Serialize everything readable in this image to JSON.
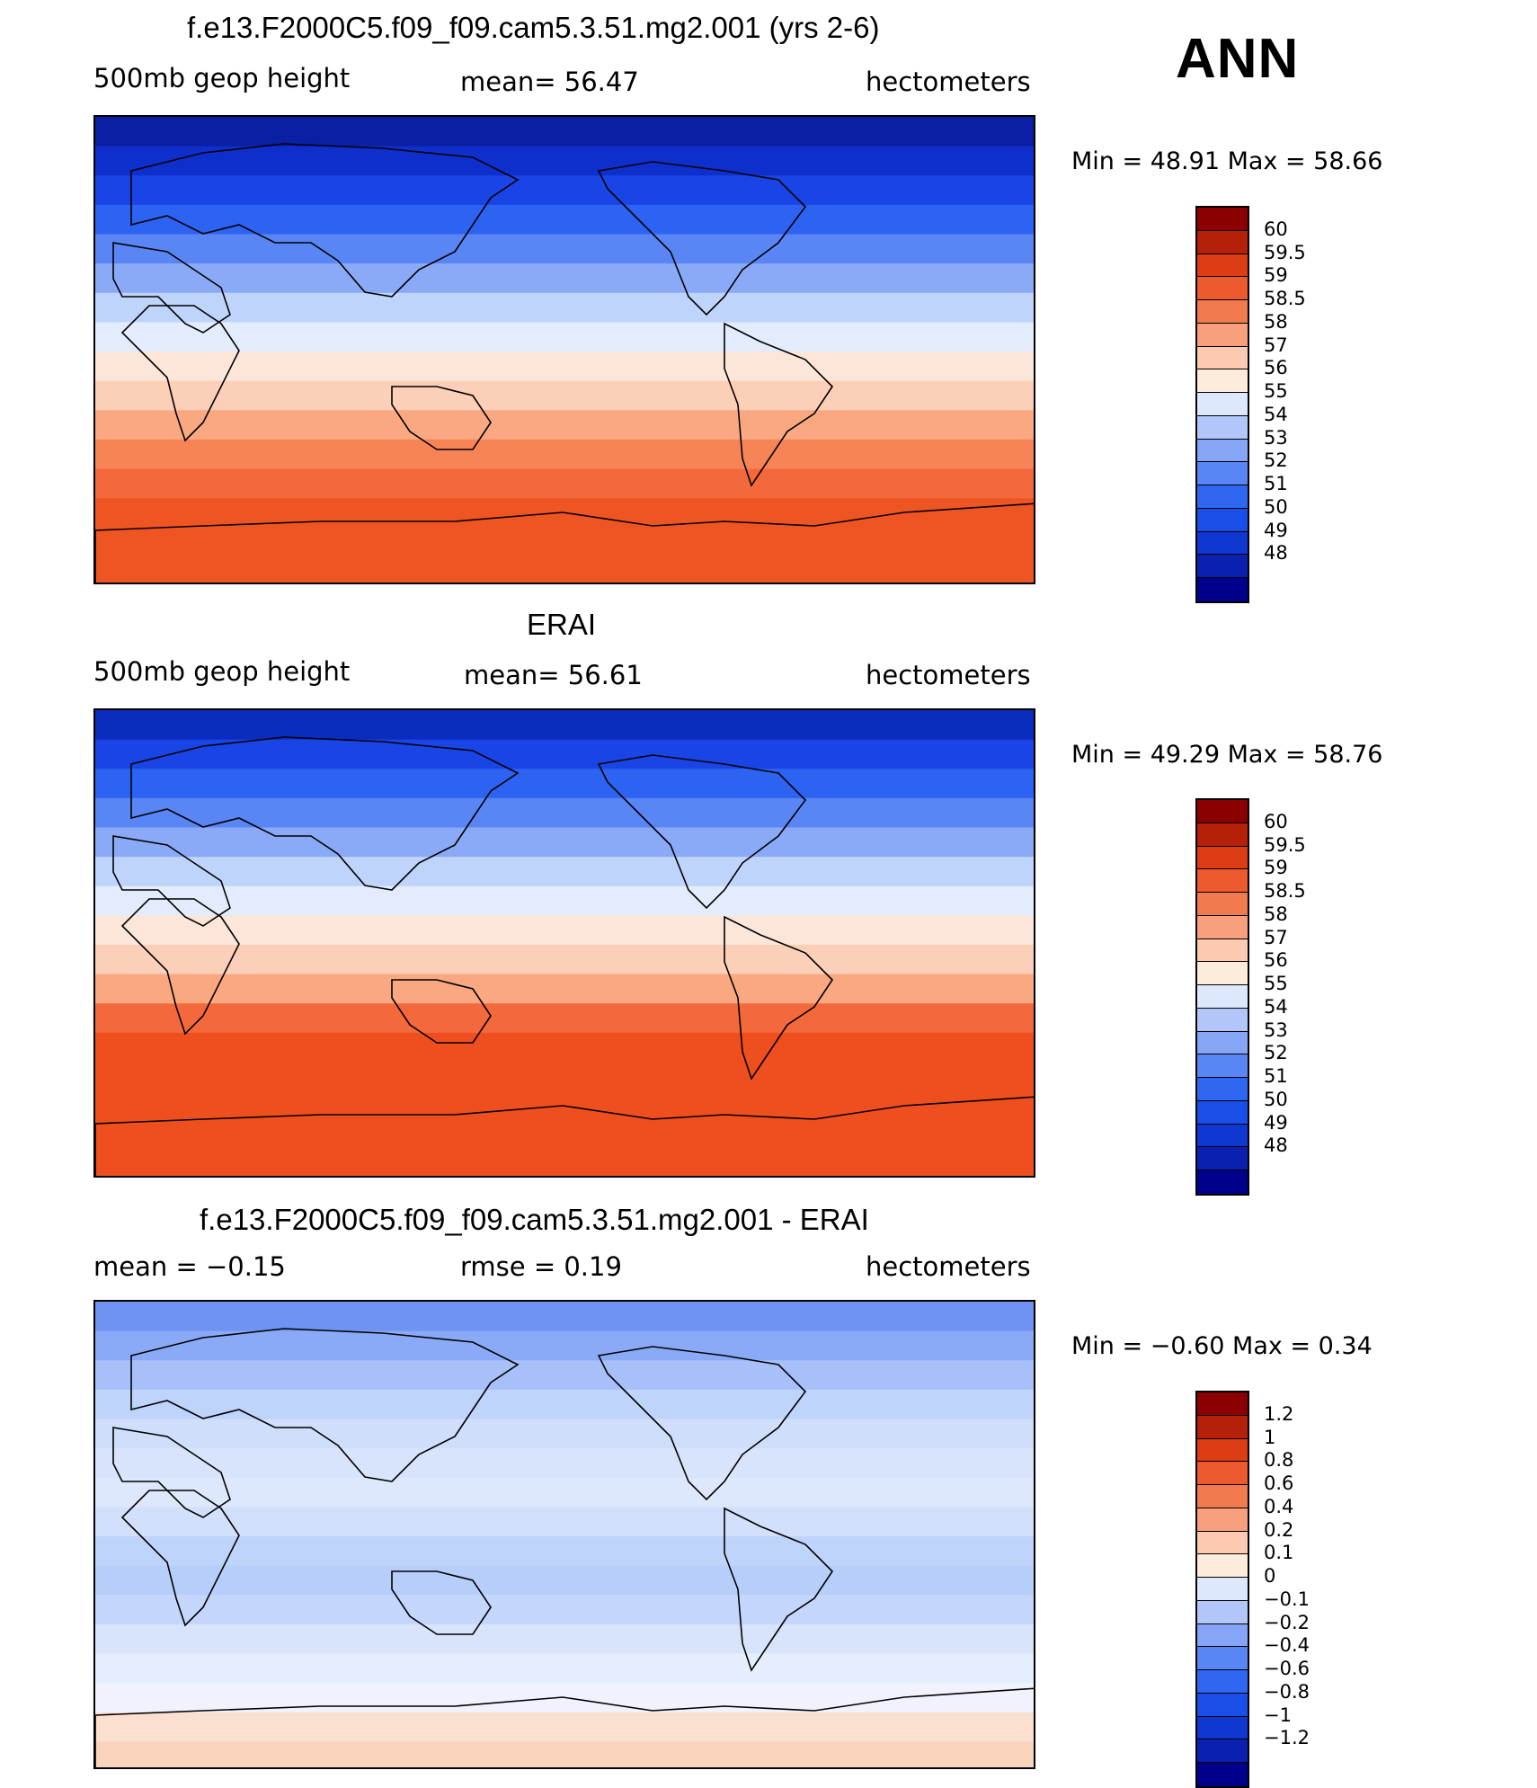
{
  "season": "ANN",
  "panels": [
    {
      "title": "f.e13.F2000C5.f09_f09.cam5.3.51.mg2.001 (yrs 2-6)",
      "left": "500mb geop height",
      "center": "mean=  56.47",
      "right": "hectometers",
      "minmax": "Min =   48.91  Max =   58.66",
      "bands": [
        "#0a1fa3",
        "#0f2fcc",
        "#1a45e6",
        "#2d63f2",
        "#5a86f5",
        "#8aaaf8",
        "#bfd4fb",
        "#e3ecfc",
        "#fce6da",
        "#fccfb8",
        "#f9a882",
        "#f78457",
        "#f4693b",
        "#ef5523",
        "#ef5523",
        "#ef5523"
      ],
      "colorbar": {
        "colors": [
          "#00008b",
          "#0a20b0",
          "#0f37d2",
          "#1a4ee8",
          "#2f66f2",
          "#5a85f5",
          "#86a5f7",
          "#b2c6fa",
          "#dde8fc",
          "#fdebdc",
          "#fccab0",
          "#f8a07d",
          "#f27a4f",
          "#ec5a2e",
          "#dd3c14",
          "#b52008",
          "#8b0000"
        ],
        "labels": [
          "60",
          "59.5",
          "59",
          "58.5",
          "58",
          "57",
          "56",
          "55",
          "54",
          "53",
          "52",
          "51",
          "50",
          "49",
          "48"
        ]
      }
    },
    {
      "title": "ERAI",
      "left": "500mb geop height",
      "center": "mean=  56.61",
      "right": "hectometers",
      "minmax": "Min =   49.29  Max =   58.76",
      "bands": [
        "#0a2cbf",
        "#1a45e6",
        "#2d63f2",
        "#5a86f5",
        "#8aaaf8",
        "#bfd4fb",
        "#e3ecfc",
        "#fce6da",
        "#fccfb8",
        "#f9a882",
        "#f4693b",
        "#ef4f1e",
        "#ef4f1e",
        "#ef4f1e",
        "#ef4f1e",
        "#ef4f1e"
      ],
      "colorbar": {
        "colors": [
          "#00008b",
          "#0a20b0",
          "#0f37d2",
          "#1a4ee8",
          "#2f66f2",
          "#5a85f5",
          "#86a5f7",
          "#b2c6fa",
          "#dde8fc",
          "#fdebdc",
          "#fccab0",
          "#f8a07d",
          "#f27a4f",
          "#ec5a2e",
          "#dd3c14",
          "#b52008",
          "#8b0000"
        ],
        "labels": [
          "60",
          "59.5",
          "59",
          "58.5",
          "58",
          "57",
          "56",
          "55",
          "54",
          "53",
          "52",
          "51",
          "50",
          "49",
          "48"
        ]
      }
    },
    {
      "title": "f.e13.F2000C5.f09_f09.cam5.3.51.mg2.001 - ERAI",
      "left": "mean =   −0.15",
      "center": "rmse =    0.19",
      "right": "hectometers",
      "minmax": "Min =   −0.60  Max =    0.34",
      "bands": [
        "#6f93f2",
        "#8aaaf8",
        "#a8c0fa",
        "#bfd4fb",
        "#cfdffb",
        "#d7e4fc",
        "#dde8fc",
        "#d2e0fb",
        "#bfd4fb",
        "#b8cefa",
        "#c4d6fb",
        "#d7e4fc",
        "#e5eefc",
        "#f0f3fd",
        "#fce0cf",
        "#fad3bd"
      ],
      "colorbar": {
        "colors": [
          "#00008b",
          "#0a20b0",
          "#0f37d2",
          "#1a4ee8",
          "#2f66f2",
          "#5a85f5",
          "#86a5f7",
          "#b2c6fa",
          "#dde8fc",
          "#fdebdc",
          "#fccab0",
          "#f8a07d",
          "#f27a4f",
          "#ec5a2e",
          "#dd3c14",
          "#b52008",
          "#8b0000"
        ],
        "labels": [
          "1.2",
          "1",
          "0.8",
          "0.6",
          "0.4",
          "0.2",
          "0.1",
          "0",
          "−0.1",
          "−0.2",
          "−0.4",
          "−0.6",
          "−0.8",
          "−1",
          "−1.2"
        ]
      }
    }
  ]
}
